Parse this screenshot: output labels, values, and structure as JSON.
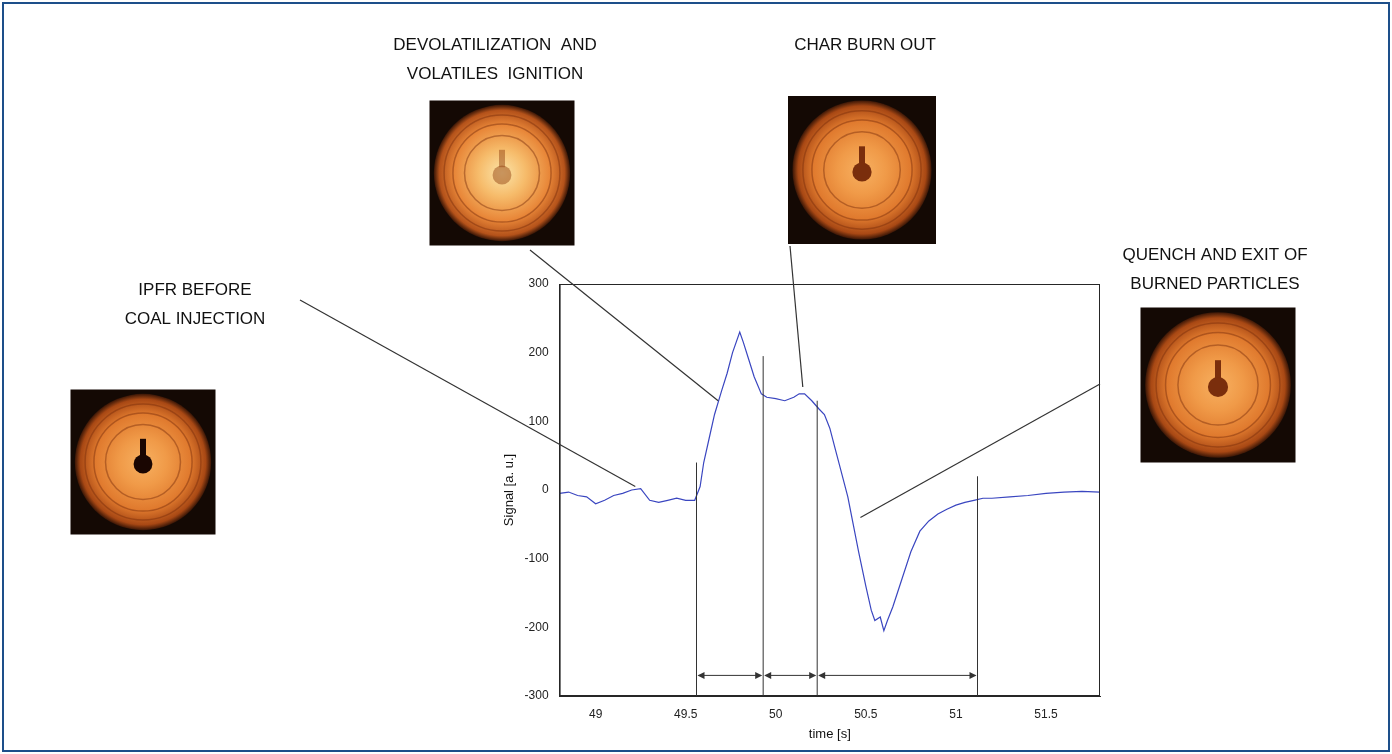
{
  "chart_data": {
    "type": "line",
    "x_label": "time [s]",
    "y_label": "Signal [a. u.]",
    "xlim": [
      48.8,
      51.8
    ],
    "xticks": [
      49,
      49.5,
      50,
      50.5,
      51,
      51.5
    ],
    "ylim": [
      -300,
      300
    ],
    "yticks": [
      -300,
      -200,
      -100,
      0,
      100,
      200,
      300
    ],
    "grid": false,
    "color": "#3a46c0",
    "x": [
      48.8,
      48.85,
      48.9,
      48.95,
      49.0,
      49.05,
      49.1,
      49.15,
      49.2,
      49.25,
      49.3,
      49.35,
      49.4,
      49.45,
      49.5,
      49.55,
      49.58,
      49.6,
      49.63,
      49.66,
      49.7,
      49.73,
      49.76,
      49.8,
      49.82,
      49.85,
      49.88,
      49.92,
      49.95,
      50.0,
      50.05,
      50.1,
      50.13,
      50.16,
      50.2,
      50.24,
      50.27,
      50.3,
      50.33,
      50.36,
      50.4,
      50.43,
      50.46,
      50.5,
      50.53,
      50.55,
      50.58,
      50.6,
      50.62,
      50.65,
      50.7,
      50.75,
      50.8,
      50.85,
      50.9,
      50.95,
      51.0,
      51.05,
      51.1,
      51.15,
      51.2,
      51.3,
      51.4,
      51.5,
      51.6,
      51.7,
      51.8
    ],
    "values": [
      -5,
      -3,
      -8,
      -10,
      -20,
      -15,
      -8,
      -5,
      0,
      2,
      -15,
      -18,
      -15,
      -12,
      -15,
      -15,
      5,
      40,
      75,
      110,
      145,
      170,
      200,
      230,
      215,
      190,
      165,
      140,
      135,
      133,
      130,
      135,
      140,
      140,
      130,
      118,
      110,
      90,
      60,
      30,
      -10,
      -50,
      -90,
      -140,
      -175,
      -190,
      -185,
      -205,
      -190,
      -170,
      -130,
      -90,
      -60,
      -45,
      -35,
      -28,
      -22,
      -18,
      -15,
      -12,
      -12,
      -10,
      -8,
      -5,
      -3,
      -2,
      -3
    ],
    "phase_boundaries": [
      {
        "x": 49.56,
        "top": 40
      },
      {
        "x": 49.93,
        "top": 195
      },
      {
        "x": 50.23,
        "top": 130
      },
      {
        "x": 51.12,
        "top": 20
      }
    ],
    "phase_arrows_y": -270,
    "annotations": [
      {
        "label": [
          "IPFR BEFORE",
          "COAL INJECTION"
        ],
        "x": 49.22,
        "y": 5
      },
      {
        "label": [
          "DEVOLATILIZATION  AND",
          "VOLATILES  IGNITION"
        ],
        "x": 49.68,
        "y": 130
      },
      {
        "label": [
          "CHAR BURN OUT"
        ],
        "x": 50.15,
        "y": 150
      },
      {
        "label": [
          "QUENCH AND EXIT OF",
          "BURNED PARTICLES"
        ],
        "x": 50.47,
        "y": -40
      }
    ]
  }
}
